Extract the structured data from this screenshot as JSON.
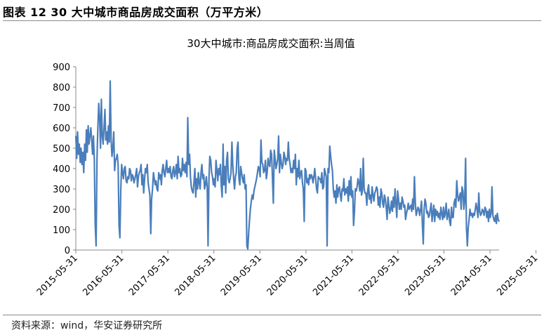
{
  "figure": {
    "title": "图表 12 30 大中城市商品房成交面积（万平方米）",
    "source": "资料来源：wind，华安证券研究所"
  },
  "chart_data": {
    "type": "line",
    "title": "30大中城市:商品房成交面积:当周值",
    "xlabel": "",
    "ylabel": "",
    "ylim": [
      0,
      900
    ],
    "yticks": [
      0,
      100,
      200,
      300,
      400,
      500,
      600,
      700,
      800,
      900
    ],
    "xticks": [
      "2015-05-31",
      "2016-05-31",
      "2017-05-31",
      "2018-05-31",
      "2019-05-31",
      "2020-05-31",
      "2021-05-31",
      "2022-05-31",
      "2023-05-31",
      "2024-05-31",
      "2025-05-31"
    ],
    "grid": false,
    "legend": "none",
    "color": "#4A7EBB",
    "series": [
      {
        "x_start": "2015-05-31",
        "frequency": "weekly",
        "values": [
          560,
          450,
          580,
          470,
          520,
          430,
          500,
          420,
          480,
          380,
          520,
          440,
          590,
          480,
          610,
          520,
          560,
          600,
          540,
          470,
          560,
          440,
          130,
          20,
          450,
          600,
          720,
          650,
          500,
          740,
          560,
          520,
          600,
          690,
          540,
          580,
          520,
          610,
          530,
          830,
          540,
          460,
          500,
          580,
          390,
          440,
          450,
          470,
          420,
          120,
          60,
          300,
          420,
          380,
          350,
          400,
          410,
          340,
          330,
          360,
          350,
          400,
          390,
          340,
          370,
          360,
          330,
          350,
          370,
          400,
          310,
          360,
          380,
          390,
          420,
          320,
          370,
          280,
          350,
          400,
          380,
          420,
          330,
          300,
          270,
          80,
          250,
          300,
          380,
          350,
          320,
          340,
          300,
          290,
          380,
          350,
          370,
          320,
          390,
          420,
          380,
          360,
          400,
          440,
          380,
          400,
          380,
          410,
          360,
          350,
          390,
          410,
          360,
          380,
          420,
          350,
          460,
          380,
          400,
          360,
          370,
          450,
          390,
          420,
          380,
          430,
          360,
          650,
          420,
          470,
          360,
          310,
          290,
          280,
          330,
          400,
          260,
          350,
          300,
          380,
          330,
          300,
          380,
          420,
          350,
          370,
          300,
          320,
          360,
          310,
          20,
          350,
          460,
          440,
          380,
          360,
          320,
          350,
          310,
          440,
          390,
          340,
          400,
          370,
          420,
          310,
          260,
          520,
          320,
          410,
          280,
          440,
          480,
          350,
          330,
          350,
          380,
          530,
          420,
          350,
          300,
          360,
          380,
          500,
          530,
          350,
          320,
          410,
          380,
          350,
          330,
          370,
          300,
          320,
          20,
          5,
          80,
          150,
          200,
          240,
          270,
          250,
          290,
          310,
          330,
          350,
          380,
          410,
          400,
          360,
          540,
          430,
          420,
          380,
          390,
          440,
          350,
          380,
          450,
          420,
          410,
          490,
          470,
          360,
          230,
          490,
          450,
          400,
          420,
          450,
          560,
          380,
          470,
          430,
          400,
          420,
          480,
          460,
          420,
          450,
          440,
          530,
          450,
          420,
          380,
          400,
          380,
          440,
          400,
          470,
          320,
          400,
          360,
          440,
          350,
          380,
          390,
          330,
          300,
          140,
          400,
          390,
          330,
          350,
          320,
          370,
          350,
          370,
          360,
          330,
          360,
          400,
          350,
          300,
          280,
          360,
          350,
          350,
          330,
          380,
          300,
          310,
          400,
          380,
          360,
          20,
          400,
          380,
          510,
          460,
          420,
          390,
          300,
          260,
          290,
          230,
          320,
          260,
          300,
          310,
          270,
          240,
          300,
          290,
          350,
          270,
          300,
          280,
          310,
          240,
          340,
          270,
          360,
          260,
          290,
          120,
          190,
          300,
          290,
          310,
          350,
          330,
          290,
          400,
          270,
          290,
          450,
          300,
          280,
          280,
          220,
          290,
          320,
          250,
          270,
          230,
          310,
          270,
          240,
          280,
          290,
          310,
          300,
          220,
          260,
          210,
          300,
          280,
          230,
          210,
          270,
          250,
          210,
          150,
          260,
          220,
          180,
          200,
          240,
          190,
          260,
          210,
          300,
          230,
          160,
          290,
          250,
          200,
          230,
          200,
          260,
          240,
          210,
          220,
          150,
          180,
          200,
          230,
          200,
          210,
          220,
          190,
          250,
          200,
          360,
          230,
          170,
          190,
          210,
          200,
          170,
          200,
          240,
          130,
          30,
          200,
          250,
          230,
          180,
          190,
          160,
          170,
          200,
          230,
          140,
          180,
          220,
          140,
          200,
          170,
          190,
          160,
          180,
          150,
          210,
          180,
          150,
          210,
          160,
          180,
          230,
          150,
          170,
          200,
          140,
          120,
          210,
          160,
          160,
          230,
          250,
          210,
          340,
          270,
          240,
          260,
          280,
          200,
          310,
          290,
          200,
          240,
          450,
          110,
          20,
          110,
          150,
          200,
          170,
          180,
          160,
          180,
          170,
          200,
          230,
          200,
          160,
          280,
          190,
          170,
          180,
          200,
          190,
          170,
          210,
          200,
          160,
          190,
          140,
          200,
          160,
          180,
          310,
          170,
          150,
          140,
          170,
          130,
          180,
          150,
          140
        ]
      }
    ]
  }
}
